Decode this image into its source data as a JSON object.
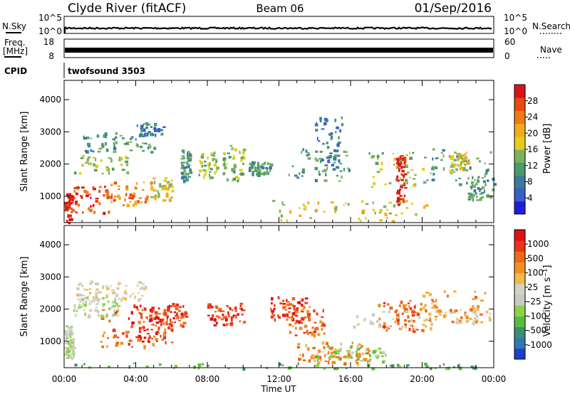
{
  "header": {
    "station": "Clyde River (fitACF)",
    "beam": "Beam 06",
    "date": "01/Sep/2016"
  },
  "strips": {
    "nsky_label": "N.Sky",
    "nsearch_label": "N.Search",
    "noise_ticks": [
      "10^5",
      "10^0"
    ],
    "freq_label_1": "Freq.",
    "freq_label_2": "[MHz]",
    "freq_ticks": [
      "18",
      "8"
    ],
    "nave_label": "Nave",
    "nave_ticks": [
      "60",
      "0"
    ],
    "cpid_label": "CPID",
    "cpid_value": "twofsound 3503"
  },
  "chart_data": [
    {
      "type": "heatmap",
      "name": "power",
      "xlabel": "Time UT",
      "ylabel": "Slant Range [km]",
      "xlim": [
        "00:00",
        "24:00"
      ],
      "ylim": [
        180,
        4600
      ],
      "x_ticks": [
        "00:00",
        "04:00",
        "08:00",
        "12:00",
        "16:00",
        "20:00",
        "00:00"
      ],
      "y_ticks": [
        "1000",
        "2000",
        "3000",
        "4000"
      ],
      "colorbar": {
        "label": "Power [dB]",
        "range": [
          0,
          32
        ],
        "ticks": [
          "4",
          "8",
          "12",
          "16",
          "20",
          "24",
          "28"
        ],
        "colors": [
          "#1e1ed8",
          "#3a5fc8",
          "#3b7a9a",
          "#4b9a6e",
          "#7cb35a",
          "#e4cc1c",
          "#f5a81e",
          "#f07a14",
          "#e84a10",
          "#d8141a"
        ]
      },
      "patches": [
        {
          "t": [
            0.0,
            0.4
          ],
          "r": [
            200,
            1100
          ],
          "level": 9
        },
        {
          "t": [
            0.4,
            2.5
          ],
          "r": [
            500,
            1350
          ],
          "level": 8
        },
        {
          "t": [
            2.5,
            4.8
          ],
          "r": [
            700,
            1500
          ],
          "level": 7
        },
        {
          "t": [
            4.8,
            6.0
          ],
          "r": [
            900,
            1600
          ],
          "level": 5
        },
        {
          "t": [
            0.5,
            3.5
          ],
          "r": [
            1700,
            2300
          ],
          "level": 4
        },
        {
          "t": [
            1.0,
            5.0
          ],
          "r": [
            2400,
            3000
          ],
          "level": 3
        },
        {
          "t": [
            4.0,
            5.5
          ],
          "r": [
            2900,
            3300
          ],
          "level": 2
        },
        {
          "t": [
            6.5,
            7.0
          ],
          "r": [
            1500,
            2500
          ],
          "level": 3
        },
        {
          "t": [
            7.5,
            8.5
          ],
          "r": [
            1600,
            2400
          ],
          "level": 4
        },
        {
          "t": [
            8.8,
            10.0
          ],
          "r": [
            1500,
            2600
          ],
          "level": 4
        },
        {
          "t": [
            10.3,
            11.5
          ],
          "r": [
            1700,
            2100
          ],
          "level": 3
        },
        {
          "t": [
            11.5,
            20.5
          ],
          "r": [
            250,
            900
          ],
          "level": 5
        },
        {
          "t": [
            12.5,
            16.0
          ],
          "r": [
            1500,
            2500
          ],
          "level": 3
        },
        {
          "t": [
            14.0,
            15.5
          ],
          "r": [
            2000,
            3500
          ],
          "level": 2
        },
        {
          "t": [
            17.0,
            20.0
          ],
          "r": [
            1300,
            2400
          ],
          "level": 4
        },
        {
          "t": [
            18.5,
            19.0
          ],
          "r": [
            800,
            2300
          ],
          "level": 9
        },
        {
          "t": [
            20.0,
            23.8
          ],
          "r": [
            1400,
            2500
          ],
          "level": 3
        },
        {
          "t": [
            21.5,
            22.5
          ],
          "r": [
            1800,
            2400
          ],
          "level": 5
        },
        {
          "t": [
            22.5,
            24.0
          ],
          "r": [
            900,
            1600
          ],
          "level": 3
        }
      ]
    },
    {
      "type": "heatmap",
      "name": "velocity",
      "xlabel": "Time UT",
      "ylabel": "Slant Range [km]",
      "xlim": [
        "00:00",
        "24:00"
      ],
      "ylim": [
        180,
        4600
      ],
      "x_ticks": [
        "00:00",
        "04:00",
        "08:00",
        "12:00",
        "16:00",
        "20:00",
        "00:00"
      ],
      "y_ticks": [
        "1000",
        "2000",
        "3000",
        "4000"
      ],
      "colorbar": {
        "label": "Velocity [m s⁻¹]",
        "ticks": [
          "1000",
          "500",
          "100",
          "25",
          "-25",
          "-100",
          "-500",
          "-1000"
        ],
        "colors": [
          "#1c3ecf",
          "#2e7ab0",
          "#3a8f70",
          "#5aba3e",
          "#8ad448",
          "#c8c8c4",
          "#d4d2c0",
          "#f5b84a",
          "#f09020",
          "#ee6818",
          "#e8341a",
          "#e01010"
        ]
      },
      "patches": [
        {
          "t": [
            0.0,
            0.5
          ],
          "r": [
            500,
            1500
          ],
          "level": 5
        },
        {
          "t": [
            0.5,
            3.0
          ],
          "r": [
            1800,
            2400
          ],
          "level": 5
        },
        {
          "t": [
            0.5,
            4.5
          ],
          "r": [
            2300,
            2900
          ],
          "level": 6
        },
        {
          "t": [
            2.0,
            6.0
          ],
          "r": [
            800,
            2000
          ],
          "level": 9
        },
        {
          "t": [
            3.5,
            5.5
          ],
          "r": [
            1000,
            2200
          ],
          "level": 10
        },
        {
          "t": [
            5.5,
            6.8
          ],
          "r": [
            1400,
            2200
          ],
          "level": 10
        },
        {
          "t": [
            8.0,
            10.0
          ],
          "r": [
            1500,
            2200
          ],
          "level": 10
        },
        {
          "t": [
            11.5,
            13.5
          ],
          "r": [
            1600,
            2400
          ],
          "level": 10
        },
        {
          "t": [
            13.0,
            17.0
          ],
          "r": [
            300,
            1000
          ],
          "level": 8
        },
        {
          "t": [
            14.0,
            18.0
          ],
          "r": [
            400,
            900
          ],
          "level": 4
        },
        {
          "t": [
            12.5,
            14.5
          ],
          "r": [
            1200,
            2200
          ],
          "level": 9
        },
        {
          "t": [
            16.0,
            24.0
          ],
          "r": [
            1400,
            2000
          ],
          "level": 6
        },
        {
          "t": [
            17.5,
            20.0
          ],
          "r": [
            1300,
            2300
          ],
          "level": 9
        },
        {
          "t": [
            20.0,
            23.5
          ],
          "r": [
            1600,
            2600
          ],
          "level": 8
        },
        {
          "t": [
            0.0,
            24.0
          ],
          "r": [
            180,
            350
          ],
          "level": 3
        }
      ]
    }
  ]
}
